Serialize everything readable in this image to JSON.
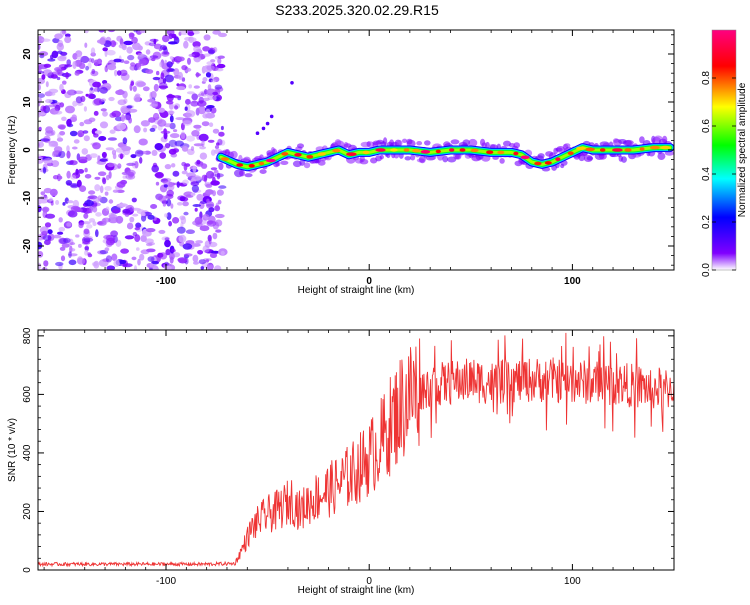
{
  "figure_title": "S233.2025.320.02.29.R15",
  "chart_data": [
    {
      "type": "heatmap",
      "title": "S233.2025.320.02.29.R15",
      "xlabel": "Height of straight line (km)",
      "ylabel": "Frequency (Hz)",
      "xlim": [
        -163,
        150
      ],
      "ylim": [
        -25,
        25
      ],
      "x_ticks": [
        -100,
        0,
        100
      ],
      "x_tick_labels": [
        "-100",
        "0",
        "100"
      ],
      "y_ticks": [
        -20,
        -10,
        0,
        10,
        20
      ],
      "y_tick_labels": [
        "-20",
        "-10",
        "0",
        "10",
        "20"
      ],
      "noise_region_x": [
        -163,
        -72
      ],
      "signal_start_x": -73,
      "ridge": {
        "x": [
          -73,
          -65,
          -60,
          -55,
          -50,
          -45,
          -40,
          -35,
          -30,
          -25,
          -20,
          -15,
          -10,
          -5,
          0,
          5,
          10,
          20,
          30,
          40,
          50,
          60,
          70,
          75,
          80,
          85,
          90,
          95,
          100,
          105,
          110,
          120,
          130,
          140,
          148
        ],
        "freq_hz": [
          -1.5,
          -3.0,
          -3.5,
          -3.0,
          -2.5,
          -1.5,
          -0.5,
          -1.0,
          -1.5,
          -1.0,
          -0.5,
          0.0,
          -1.0,
          -0.5,
          -0.5,
          0.0,
          0.0,
          0.0,
          -0.5,
          0.0,
          0.0,
          -0.5,
          -0.5,
          -1.0,
          -2.5,
          -3.0,
          -2.5,
          -1.5,
          -0.5,
          0.5,
          0.0,
          0.0,
          0.0,
          0.5,
          0.5
        ]
      },
      "stray_points": {
        "x": [
          -55,
          -52,
          -50,
          -48,
          -38
        ],
        "freq_hz": [
          3.5,
          4.5,
          5.5,
          7.0,
          14.0
        ]
      },
      "colorbar": {
        "label": "Normalized spectral amplitude",
        "range": [
          0,
          1
        ],
        "ticks": [
          0.0,
          0.2,
          0.4,
          0.6,
          0.8
        ],
        "tick_labels": [
          "0.0",
          "0.2",
          "0.4",
          "0.6",
          "0.8"
        ],
        "colors": [
          "#ffffff",
          "#8000ff",
          "#0000ff",
          "#00ffff",
          "#00ff00",
          "#ffff00",
          "#ff0000",
          "#ff0080"
        ]
      }
    },
    {
      "type": "line",
      "xlabel": "Height of straight line (km)",
      "ylabel": "SNR (10 * v/v)",
      "xlim": [
        -163,
        150
      ],
      "ylim": [
        0,
        820
      ],
      "x_ticks": [
        -100,
        0,
        100
      ],
      "x_tick_labels": [
        "-100",
        "0",
        "100"
      ],
      "y_ticks": [
        0,
        200,
        400,
        600,
        800
      ],
      "y_tick_labels": [
        "0",
        "200",
        "400",
        "600",
        "800"
      ],
      "series": [
        {
          "name": "SNR",
          "color": "#ee3333",
          "x": [
            -163,
            -140,
            -120,
            -100,
            -80,
            -66,
            -62,
            -58,
            -54,
            -50,
            -46,
            -42,
            -38,
            -34,
            -30,
            -26,
            -22,
            -18,
            -14,
            -10,
            -6,
            -2,
            2,
            6,
            10,
            14,
            18,
            22,
            26,
            30,
            40,
            50,
            60,
            70,
            80,
            90,
            100,
            110,
            120,
            130,
            140,
            150
          ],
          "values": [
            20,
            20,
            20,
            20,
            20,
            22,
            80,
            140,
            170,
            190,
            200,
            220,
            240,
            200,
            230,
            250,
            265,
            280,
            300,
            320,
            340,
            370,
            400,
            440,
            490,
            540,
            580,
            610,
            620,
            630,
            640,
            650,
            640,
            645,
            650,
            650,
            645,
            640,
            640,
            630,
            620,
            620
          ]
        }
      ]
    }
  ]
}
